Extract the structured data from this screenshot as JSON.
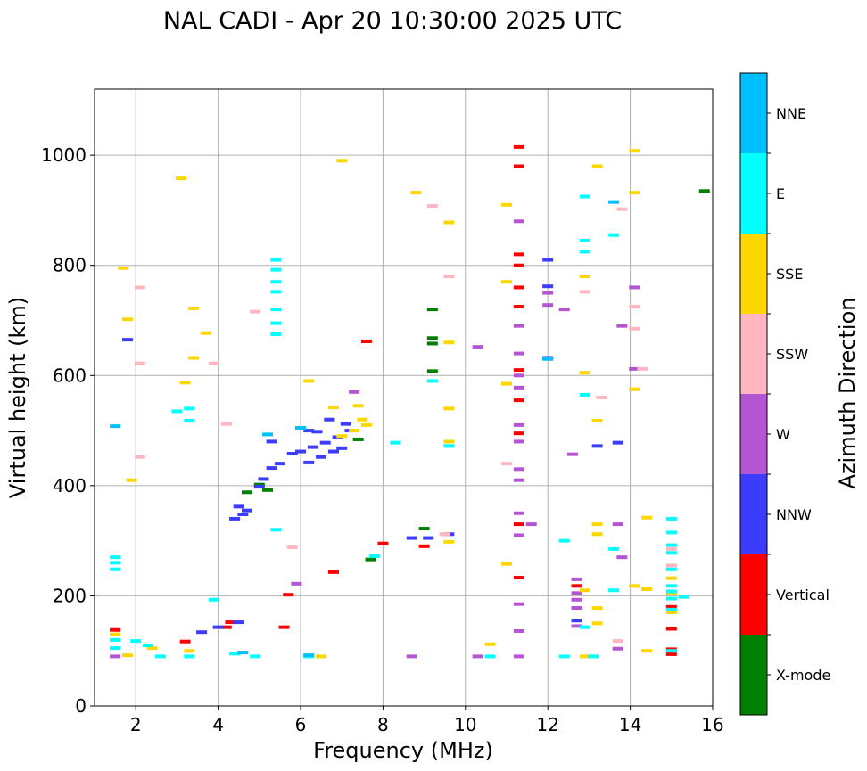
{
  "chart_data": {
    "type": "scatter",
    "title": "NAL CADI - Apr 20 10:30:00 2025 UTC",
    "xlabel": "Frequency (MHz)",
    "ylabel": "Virtual height (km)",
    "xlim": [
      1,
      16
    ],
    "ylim": [
      0,
      1120
    ],
    "xticks": [
      2,
      4,
      6,
      8,
      10,
      12,
      14,
      16
    ],
    "yticks": [
      0,
      200,
      400,
      600,
      800,
      1000
    ],
    "grid": true,
    "colorbar": {
      "label": "Azimuth Direction",
      "categories": [
        {
          "name": "X-mode",
          "color": "#008000"
        },
        {
          "name": "Vertical",
          "color": "#ff0000"
        },
        {
          "name": "NNW",
          "color": "#3c3cff"
        },
        {
          "name": "W",
          "color": "#b455d2"
        },
        {
          "name": "SSW",
          "color": "#ffb6c1"
        },
        {
          "name": "SSE",
          "color": "#ffd700"
        },
        {
          "name": "E",
          "color": "#00ffff"
        },
        {
          "name": "NNE",
          "color": "#00bfff"
        }
      ]
    },
    "series": [
      {
        "name": "X-mode",
        "points": [
          [
            9.2,
            720
          ],
          [
            9.2,
            668
          ],
          [
            9.2,
            658
          ],
          [
            9.2,
            608
          ],
          [
            15.8,
            935
          ],
          [
            4.7,
            388
          ],
          [
            5.0,
            402
          ],
          [
            7.7,
            266
          ],
          [
            7.4,
            484
          ],
          [
            9.0,
            322
          ],
          [
            5.2,
            392
          ]
        ]
      },
      {
        "name": "Vertical",
        "points": [
          [
            11.3,
            1015
          ],
          [
            11.3,
            980
          ],
          [
            11.3,
            820
          ],
          [
            11.3,
            800
          ],
          [
            11.3,
            760
          ],
          [
            11.3,
            725
          ],
          [
            11.3,
            610
          ],
          [
            11.3,
            555
          ],
          [
            11.3,
            495
          ],
          [
            11.3,
            330
          ],
          [
            11.3,
            233
          ],
          [
            15.0,
            103
          ],
          [
            15.0,
            94
          ],
          [
            15.0,
            140
          ],
          [
            15.0,
            180
          ],
          [
            12.7,
            218
          ],
          [
            8.0,
            295
          ],
          [
            7.6,
            662
          ],
          [
            5.7,
            202
          ],
          [
            4.3,
            152
          ],
          [
            4.2,
            143
          ],
          [
            1.5,
            138
          ],
          [
            3.2,
            117
          ],
          [
            6.8,
            243
          ],
          [
            5.6,
            143
          ],
          [
            9.0,
            290
          ]
        ]
      },
      {
        "name": "NNW",
        "points": [
          [
            12.0,
            810
          ],
          [
            12.0,
            762
          ],
          [
            12.0,
            632
          ],
          [
            4.5,
            362
          ],
          [
            4.6,
            348
          ],
          [
            4.7,
            355
          ],
          [
            5.0,
            398
          ],
          [
            5.1,
            412
          ],
          [
            5.3,
            432
          ],
          [
            5.5,
            440
          ],
          [
            5.8,
            458
          ],
          [
            6.0,
            462
          ],
          [
            6.2,
            442
          ],
          [
            6.3,
            470
          ],
          [
            6.5,
            452
          ],
          [
            6.6,
            478
          ],
          [
            6.8,
            462
          ],
          [
            7.0,
            468
          ],
          [
            6.4,
            498
          ],
          [
            6.9,
            488
          ],
          [
            7.2,
            500
          ],
          [
            4.4,
            340
          ],
          [
            13.2,
            472
          ],
          [
            13.7,
            478
          ],
          [
            12.7,
            155
          ],
          [
            9.1,
            305
          ],
          [
            9.6,
            312
          ],
          [
            8.7,
            305
          ],
          [
            4.0,
            143
          ],
          [
            4.5,
            152
          ],
          [
            3.6,
            134
          ],
          [
            1.8,
            665
          ],
          [
            5.3,
            480
          ],
          [
            6.2,
            500
          ],
          [
            6.7,
            520
          ],
          [
            7.1,
            512
          ]
        ]
      },
      {
        "name": "W",
        "points": [
          [
            11.3,
            880
          ],
          [
            11.3,
            690
          ],
          [
            11.3,
            640
          ],
          [
            11.3,
            600
          ],
          [
            11.3,
            578
          ],
          [
            11.3,
            510
          ],
          [
            11.3,
            480
          ],
          [
            11.3,
            430
          ],
          [
            11.3,
            410
          ],
          [
            11.3,
            350
          ],
          [
            11.3,
            310
          ],
          [
            11.3,
            185
          ],
          [
            11.3,
            136
          ],
          [
            11.3,
            90
          ],
          [
            12.0,
            750
          ],
          [
            12.0,
            728
          ],
          [
            12.4,
            720
          ],
          [
            12.7,
            230
          ],
          [
            12.7,
            205
          ],
          [
            12.7,
            193
          ],
          [
            12.7,
            178
          ],
          [
            12.7,
            145
          ],
          [
            12.6,
            457
          ],
          [
            13.8,
            690
          ],
          [
            14.1,
            760
          ],
          [
            14.1,
            612
          ],
          [
            13.7,
            330
          ],
          [
            13.8,
            270
          ],
          [
            13.7,
            104
          ],
          [
            10.3,
            652
          ],
          [
            5.9,
            222
          ],
          [
            7.3,
            570
          ],
          [
            8.7,
            90
          ],
          [
            10.3,
            90
          ],
          [
            11.6,
            330
          ],
          [
            1.5,
            90
          ]
        ]
      },
      {
        "name": "SSW",
        "points": [
          [
            12.9,
            752
          ],
          [
            13.3,
            560
          ],
          [
            13.8,
            902
          ],
          [
            14.1,
            725
          ],
          [
            14.1,
            685
          ],
          [
            14.3,
            612
          ],
          [
            9.6,
            780
          ],
          [
            11.0,
            440
          ],
          [
            15.0,
            255
          ],
          [
            15.0,
            285
          ],
          [
            2.1,
            760
          ],
          [
            3.9,
            622
          ],
          [
            2.1,
            622
          ],
          [
            4.9,
            716
          ],
          [
            4.2,
            512
          ],
          [
            5.8,
            288
          ],
          [
            9.2,
            908
          ],
          [
            9.5,
            312
          ],
          [
            13.7,
            118
          ],
          [
            2.1,
            452
          ]
        ]
      },
      {
        "name": "SSE",
        "points": [
          [
            13.2,
            980
          ],
          [
            14.1,
            1008
          ],
          [
            14.1,
            932
          ],
          [
            12.9,
            780
          ],
          [
            12.9,
            605
          ],
          [
            14.1,
            575
          ],
          [
            13.2,
            518
          ],
          [
            13.2,
            312
          ],
          [
            13.2,
            330
          ],
          [
            13.2,
            178
          ],
          [
            13.2,
            150
          ],
          [
            14.4,
            342
          ],
          [
            14.1,
            218
          ],
          [
            14.4,
            212
          ],
          [
            14.4,
            100
          ],
          [
            12.9,
            210
          ],
          [
            12.9,
            90
          ],
          [
            11.0,
            585
          ],
          [
            11.0,
            910
          ],
          [
            11.0,
            770
          ],
          [
            11.0,
            258
          ],
          [
            10.6,
            112
          ],
          [
            7.0,
            990
          ],
          [
            3.1,
            958
          ],
          [
            1.7,
            795
          ],
          [
            1.8,
            702
          ],
          [
            3.4,
            722
          ],
          [
            3.4,
            632
          ],
          [
            3.7,
            677
          ],
          [
            3.2,
            587
          ],
          [
            9.6,
            878
          ],
          [
            9.6,
            540
          ],
          [
            9.6,
            660
          ],
          [
            9.6,
            480
          ],
          [
            9.6,
            298
          ],
          [
            8.8,
            932
          ],
          [
            6.2,
            590
          ],
          [
            6.8,
            542
          ],
          [
            7.4,
            545
          ],
          [
            7.5,
            520
          ],
          [
            7.6,
            510
          ],
          [
            7.3,
            500
          ],
          [
            7.0,
            490
          ],
          [
            15.0,
            170
          ],
          [
            15.0,
            205
          ],
          [
            15.0,
            232
          ],
          [
            1.5,
            130
          ],
          [
            1.8,
            92
          ],
          [
            2.4,
            105
          ],
          [
            3.3,
            100
          ],
          [
            1.9,
            410
          ],
          [
            6.5,
            90
          ]
        ]
      },
      {
        "name": "E",
        "points": [
          [
            15.0,
            340
          ],
          [
            15.0,
            315
          ],
          [
            15.0,
            292
          ],
          [
            15.0,
            278
          ],
          [
            15.0,
            248
          ],
          [
            15.0,
            218
          ],
          [
            15.0,
            208
          ],
          [
            15.0,
            195
          ],
          [
            15.0,
            175
          ],
          [
            15.0,
            100
          ],
          [
            15.3,
            198
          ],
          [
            12.9,
            925
          ],
          [
            13.6,
            855
          ],
          [
            12.9,
            845
          ],
          [
            12.9,
            825
          ],
          [
            12.9,
            565
          ],
          [
            12.4,
            300
          ],
          [
            13.6,
            285
          ],
          [
            13.6,
            210
          ],
          [
            12.9,
            143
          ],
          [
            13.1,
            90
          ],
          [
            12.4,
            90
          ],
          [
            9.2,
            590
          ],
          [
            8.3,
            478
          ],
          [
            7.8,
            272
          ],
          [
            5.4,
            810
          ],
          [
            5.4,
            792
          ],
          [
            5.4,
            770
          ],
          [
            5.4,
            752
          ],
          [
            5.4,
            720
          ],
          [
            5.4,
            695
          ],
          [
            5.4,
            675
          ],
          [
            5.4,
            320
          ],
          [
            3.3,
            518
          ],
          [
            3.3,
            540
          ],
          [
            3.0,
            535
          ],
          [
            3.9,
            193
          ],
          [
            4.4,
            95
          ],
          [
            4.9,
            90
          ],
          [
            1.5,
            270
          ],
          [
            1.5,
            260
          ],
          [
            1.5,
            248
          ],
          [
            1.5,
            120
          ],
          [
            1.5,
            105
          ],
          [
            2.0,
            118
          ],
          [
            2.3,
            110
          ],
          [
            2.6,
            90
          ],
          [
            3.3,
            90
          ],
          [
            6.2,
            90
          ],
          [
            10.6,
            90
          ],
          [
            9.6,
            472
          ]
        ]
      },
      {
        "name": "NNE",
        "points": [
          [
            1.5,
            508
          ],
          [
            13.6,
            915
          ],
          [
            12.0,
            630
          ],
          [
            4.6,
            97
          ],
          [
            5.2,
            493
          ],
          [
            6.0,
            505
          ],
          [
            6.2,
            92
          ]
        ]
      }
    ]
  }
}
